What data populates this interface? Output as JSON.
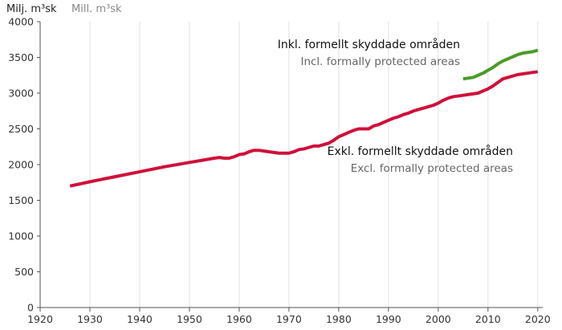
{
  "chart_data": {
    "type": "line",
    "ylabel": "Milj. m³sk",
    "ylabel_secondary": "Mill. m³sk",
    "xlim": [
      1920,
      2021
    ],
    "ylim": [
      0,
      4000
    ],
    "x_ticks": [
      1920,
      1930,
      1940,
      1950,
      1960,
      1970,
      1980,
      1990,
      2000,
      2010,
      2020
    ],
    "y_ticks": [
      0,
      500,
      1000,
      1500,
      2000,
      2500,
      3000,
      3500,
      4000
    ],
    "grid": "vertical",
    "series": [
      {
        "name": "Exkl. formellt skyddade områden",
        "name_secondary": "Excl. formally protected areas",
        "color": "#d0103a",
        "x": [
          1926,
          1930,
          1935,
          1940,
          1945,
          1950,
          1955,
          1956,
          1957,
          1958,
          1959,
          1960,
          1961,
          1962,
          1963,
          1964,
          1965,
          1966,
          1967,
          1968,
          1969,
          1970,
          1971,
          1972,
          1973,
          1974,
          1975,
          1976,
          1977,
          1978,
          1979,
          1980,
          1981,
          1982,
          1983,
          1984,
          1985,
          1986,
          1987,
          1988,
          1989,
          1990,
          1991,
          1992,
          1993,
          1994,
          1995,
          1996,
          1997,
          1998,
          1999,
          2000,
          2001,
          2002,
          2003,
          2004,
          2005,
          2006,
          2007,
          2008,
          2009,
          2010,
          2011,
          2012,
          2013,
          2014,
          2015,
          2016,
          2017,
          2018,
          2019,
          2020
        ],
        "values": [
          1700,
          1760,
          1830,
          1900,
          1970,
          2030,
          2090,
          2100,
          2090,
          2090,
          2110,
          2140,
          2150,
          2180,
          2200,
          2200,
          2190,
          2180,
          2170,
          2160,
          2160,
          2160,
          2180,
          2210,
          2220,
          2240,
          2260,
          2260,
          2280,
          2300,
          2340,
          2390,
          2420,
          2450,
          2480,
          2500,
          2500,
          2500,
          2540,
          2560,
          2590,
          2620,
          2650,
          2670,
          2700,
          2720,
          2750,
          2770,
          2790,
          2810,
          2830,
          2860,
          2900,
          2930,
          2950,
          2960,
          2970,
          2980,
          2990,
          3000,
          3030,
          3060,
          3100,
          3150,
          3200,
          3220,
          3240,
          3260,
          3270,
          3280,
          3290,
          3300
        ]
      },
      {
        "name": "Inkl. formellt skyddade områden",
        "name_secondary": "Incl. formally protected areas",
        "color": "#4b9b28",
        "x": [
          2005,
          2006,
          2007,
          2008,
          2009,
          2010,
          2011,
          2012,
          2013,
          2014,
          2015,
          2016,
          2017,
          2018,
          2019,
          2020
        ],
        "values": [
          3200,
          3210,
          3220,
          3250,
          3280,
          3320,
          3360,
          3410,
          3450,
          3480,
          3510,
          3540,
          3560,
          3570,
          3580,
          3600
        ]
      }
    ]
  }
}
